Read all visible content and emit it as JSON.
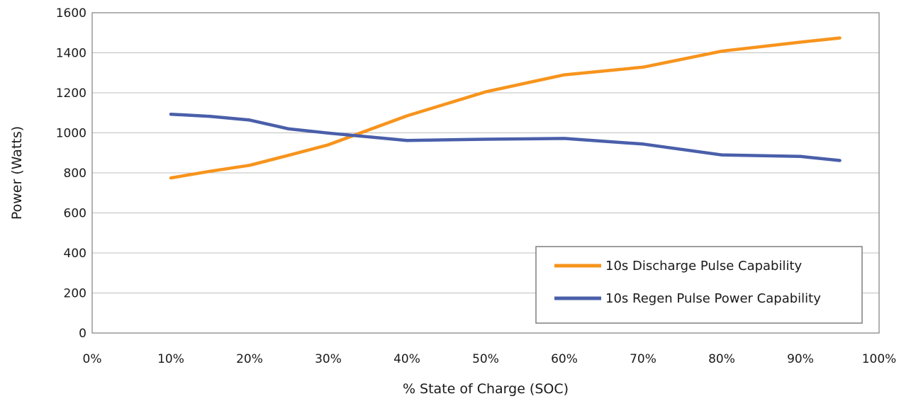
{
  "chart_data": {
    "type": "line",
    "title": "",
    "xlabel": "% State of Charge (SOC)",
    "ylabel": "Power (Watts)",
    "xlim": [
      0,
      100
    ],
    "ylim": [
      0,
      1600
    ],
    "x_ticks": [
      "0%",
      "10%",
      "20%",
      "30%",
      "40%",
      "50%",
      "60%",
      "70%",
      "80%",
      "90%",
      "100%"
    ],
    "y_ticks": [
      0,
      200,
      400,
      600,
      800,
      1000,
      1200,
      1400,
      1600
    ],
    "grid": "horizontal",
    "legend_position": "bottom-right",
    "series": [
      {
        "name": "10s Discharge Pulse Capability",
        "color": "#F7941D",
        "x": [
          10,
          15,
          20,
          25,
          30,
          40,
          50,
          60,
          70,
          80,
          90,
          95
        ],
        "y": [
          775,
          808,
          838,
          888,
          940,
          1085,
          1205,
          1290,
          1328,
          1408,
          1453,
          1474
        ]
      },
      {
        "name": "10s Regen Pulse Power Capability",
        "color": "#4A5FAA",
        "x": [
          10,
          15,
          20,
          25,
          30,
          40,
          50,
          60,
          70,
          80,
          90,
          95
        ],
        "y": [
          1093,
          1082,
          1064,
          1020,
          999,
          962,
          968,
          972,
          944,
          890,
          882,
          862
        ]
      }
    ]
  }
}
